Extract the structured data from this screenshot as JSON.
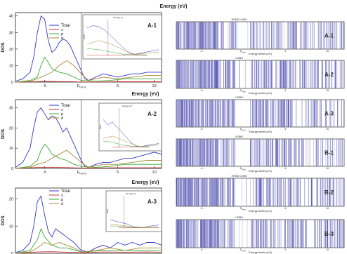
{
  "chart_data": [
    {
      "type": "line",
      "title": "Energy (eV)",
      "ylabel": "DOS",
      "x_ticks": [
        "-5",
        "E_Fermi",
        "5",
        "10"
      ],
      "y_ticks": [
        "0",
        "10",
        "20",
        "30",
        "40"
      ],
      "ylim": [
        0,
        42
      ],
      "xlim": [
        -9,
        11
      ],
      "fermi": 0,
      "legend": [
        "Total",
        "s",
        "p",
        "d"
      ],
      "series_colors": [
        "#3333cc",
        "#cc3333",
        "#33aa33",
        "#aa8833"
      ],
      "inset_label": "A-1",
      "inset_title": "Energy eV",
      "inset_ylabel": "DOS",
      "series": [
        {
          "name": "Total",
          "x": [
            -9,
            -8,
            -7,
            -6.5,
            -6,
            -5.5,
            -5,
            -4.5,
            -4,
            -3.5,
            -3,
            -2.5,
            -2,
            -1.5,
            -1,
            -0.5,
            0,
            0.5,
            1,
            2,
            3,
            4,
            5,
            6,
            7,
            8,
            9,
            10,
            11
          ],
          "y": [
            0.5,
            2,
            6,
            15,
            30,
            40,
            38,
            25,
            18,
            20,
            24,
            26,
            25,
            22,
            17,
            12,
            7,
            2,
            1,
            3,
            5,
            4,
            3,
            4,
            5,
            5,
            6,
            6,
            6
          ]
        },
        {
          "name": "s",
          "x": [
            -9,
            -6,
            -5,
            -4,
            -3,
            -2,
            -1,
            0,
            2,
            5,
            8,
            11
          ],
          "y": [
            0,
            0.3,
            0.5,
            0.4,
            0.3,
            0.3,
            0.2,
            0.1,
            0.1,
            0.2,
            0.2,
            0.2
          ]
        },
        {
          "name": "p",
          "x": [
            -9,
            -7,
            -6,
            -5.5,
            -5,
            -4.5,
            -4,
            -3,
            -2,
            -1,
            0,
            2,
            4,
            6,
            8,
            11
          ],
          "y": [
            0,
            1,
            3,
            10,
            15,
            12,
            8,
            6,
            5,
            3,
            1,
            0.5,
            1,
            2,
            2,
            2
          ]
        },
        {
          "name": "d",
          "x": [
            -9,
            -7,
            -6,
            -5,
            -4,
            -3,
            -2,
            -1,
            0,
            1,
            3,
            5,
            7,
            9,
            11
          ],
          "y": [
            0,
            0.5,
            2,
            4,
            6,
            10,
            13,
            10,
            5,
            1,
            3,
            2,
            3,
            4,
            4
          ]
        }
      ]
    },
    {
      "type": "line",
      "title": "Energy (eV)",
      "ylabel": "DOS",
      "x_ticks": [
        "-5",
        "E_Fermi",
        "5",
        "10"
      ],
      "y_ticks": [
        "0",
        "10",
        "20",
        "30"
      ],
      "ylim": [
        0,
        34
      ],
      "xlim": [
        -9,
        11
      ],
      "fermi": 0,
      "legend": [
        "Total",
        "s",
        "p",
        "d"
      ],
      "series_colors": [
        "#3333cc",
        "#cc3333",
        "#33aa33",
        "#aa8833"
      ],
      "inset_label": "A-2",
      "inset_title": "Energy eV",
      "inset_ylabel": "DOS",
      "series": [
        {
          "name": "Total",
          "x": [
            -9,
            -8,
            -7,
            -6.5,
            -6,
            -5.5,
            -5,
            -4.5,
            -4,
            -3.5,
            -3,
            -2.5,
            -2,
            -1.5,
            -1,
            -0.5,
            0,
            0.5,
            1,
            2,
            3,
            4,
            5,
            6,
            7,
            8,
            9,
            10,
            11
          ],
          "y": [
            0.5,
            3,
            10,
            20,
            28,
            30,
            27,
            24,
            26,
            25,
            22,
            18,
            20,
            16,
            12,
            8,
            4,
            1,
            0.5,
            2,
            3,
            3,
            4,
            5,
            5,
            6,
            7,
            8,
            7
          ]
        },
        {
          "name": "s",
          "x": [
            -9,
            -6,
            -4,
            -2,
            0,
            2,
            5,
            8,
            11
          ],
          "y": [
            0,
            0.5,
            0.6,
            0.4,
            0.2,
            0.2,
            0.3,
            0.3,
            0.3
          ]
        },
        {
          "name": "p",
          "x": [
            -9,
            -7,
            -6,
            -5.5,
            -5,
            -4.5,
            -4,
            -3,
            -2,
            -1,
            0,
            2,
            4,
            6,
            8,
            11
          ],
          "y": [
            0,
            1,
            4,
            9,
            12,
            10,
            7,
            5,
            4,
            2,
            1,
            0.5,
            1,
            2,
            2,
            2
          ]
        },
        {
          "name": "d",
          "x": [
            -9,
            -7,
            -6,
            -5,
            -4,
            -3,
            -2,
            -1,
            0,
            1,
            3,
            5,
            7,
            9,
            11
          ],
          "y": [
            0,
            0.5,
            2,
            3,
            5,
            7,
            9,
            6,
            3,
            0.5,
            2,
            2,
            3,
            4,
            4
          ]
        }
      ]
    },
    {
      "type": "line",
      "title": "Energy (eV)",
      "ylabel": "DOS",
      "x_ticks": [],
      "y_ticks": [
        "0",
        "10",
        "20"
      ],
      "ylim": [
        0,
        24
      ],
      "xlim": [
        -9,
        11
      ],
      "fermi": 0,
      "legend": [
        "Total",
        "s",
        "p",
        "d"
      ],
      "series_colors": [
        "#3333cc",
        "#cc3333",
        "#33aa33",
        "#aa8833"
      ],
      "inset_label": "A-3",
      "inset_title": "Energy eV",
      "inset_ylabel": "DOS",
      "series": [
        {
          "name": "Total",
          "x": [
            -9,
            -8,
            -7,
            -6.5,
            -6,
            -5.5,
            -5,
            -4.5,
            -4,
            -3.5,
            -3,
            -2.5,
            -2,
            -1.5,
            -1,
            0,
            1,
            2,
            3,
            4,
            5,
            6,
            7,
            8,
            9,
            10,
            11
          ],
          "y": [
            0.3,
            1,
            4,
            10,
            19,
            21,
            14,
            8,
            6,
            9,
            8,
            7,
            6,
            5,
            4,
            1,
            0.5,
            2,
            3,
            2,
            4,
            3,
            4,
            3,
            4,
            4,
            3
          ]
        },
        {
          "name": "s",
          "x": [
            -9,
            -6,
            -4,
            -2,
            0,
            3,
            6,
            9,
            11
          ],
          "y": [
            0,
            0.5,
            0.6,
            0.4,
            0.2,
            0.5,
            0.4,
            0.5,
            0.4
          ]
        },
        {
          "name": "p",
          "x": [
            -9,
            -7,
            -6,
            -5.5,
            -5,
            -4,
            -3,
            -2,
            0,
            3,
            6,
            9,
            11
          ],
          "y": [
            0,
            1,
            5,
            9,
            6,
            3,
            2,
            2,
            0.5,
            1,
            1,
            1,
            1
          ]
        },
        {
          "name": "d",
          "x": [
            -9,
            -7,
            -6,
            -5,
            -4,
            -3,
            -2,
            -1,
            0,
            2,
            4,
            6,
            8,
            11
          ],
          "y": [
            0,
            0.5,
            2,
            4,
            3,
            4,
            3,
            2,
            0.5,
            1,
            2,
            1,
            2,
            2
          ]
        }
      ]
    }
  ],
  "orbital_panels": [
    {
      "label": "A-1",
      "top_label": "HOMO  LUMO",
      "xlabel": "Energy levels (eV)",
      "fermi_label": "E_Fermi",
      "ticks": [
        "-5",
        "5",
        "10"
      ]
    },
    {
      "label": "A-2",
      "top_label": "HOMO",
      "xlabel": "Energy levels (eV)",
      "fermi_label": "E_Fermi",
      "ticks": [
        "-5",
        "5",
        "10"
      ]
    },
    {
      "label": "A-3",
      "top_label": "HOMO",
      "xlabel": "Energy levels (eV)",
      "fermi_label": "E_Fermi",
      "ticks": [
        "-5",
        "5",
        "10"
      ]
    },
    {
      "label": "B-1",
      "top_label": "HOMO",
      "xlabel": "Energy levels (eV)",
      "fermi_label": "E_Fermi",
      "ticks": [
        "-5",
        "5",
        "10"
      ]
    },
    {
      "label": "B-2",
      "top_label": "HOMO LUMO",
      "xlabel": "Energy levels (eV)",
      "fermi_label": "E_Fermi",
      "ticks": [
        "-5",
        "5",
        "10"
      ]
    },
    {
      "label": "B-3",
      "top_label": "HOMO",
      "xlabel": "Energy levels (eV)",
      "fermi_label": "E_Fermi",
      "ticks": [
        "-5",
        "5",
        "10"
      ]
    }
  ],
  "colors": {
    "band": "#3a3aa8",
    "label": "#3366bb"
  }
}
